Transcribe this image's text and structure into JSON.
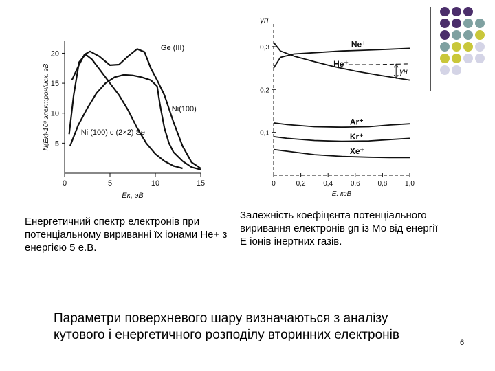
{
  "colors": {
    "purple": "#4b2e6b",
    "teal": "#7fa1a1",
    "olive": "#c9c73a",
    "lavender": "#d4d4e6",
    "ink": "#111111"
  },
  "decor": {
    "dot_rows": [
      [
        "purple",
        "purple",
        "purple"
      ],
      [
        "purple",
        "purple",
        "teal",
        "teal"
      ],
      [
        "purple",
        "teal",
        "teal",
        "olive"
      ],
      [
        "teal",
        "olive",
        "olive",
        "lavender"
      ],
      [
        "olive",
        "olive",
        "lavender",
        "lavender"
      ],
      [
        "lavender",
        "lavender"
      ]
    ]
  },
  "chart_data": [
    {
      "type": "line",
      "ylabel": "N(Eк)·10³ электрон/иск. эВ",
      "xlabel": "Eк, эВ",
      "xlim": [
        0,
        15
      ],
      "ylim": [
        0,
        22
      ],
      "xticks": [
        "0",
        "5",
        "10",
        "15"
      ],
      "yticks": [
        "5",
        "10",
        "15",
        "20"
      ],
      "series": [
        {
          "name": "Ge (III)",
          "label_x": 10.6,
          "label_y": 20.5,
          "points": [
            [
              0.8,
              15.5
            ],
            [
              1.5,
              17.8
            ],
            [
              2.2,
              19.8
            ],
            [
              2.8,
              20.3
            ],
            [
              3.8,
              19.5
            ],
            [
              5,
              18
            ],
            [
              6,
              18.1
            ],
            [
              7,
              19.5
            ],
            [
              8,
              20.7
            ],
            [
              8.8,
              20.2
            ],
            [
              9.5,
              17.5
            ],
            [
              10.2,
              15.5
            ],
            [
              11,
              13
            ],
            [
              12,
              8.5
            ],
            [
              13,
              4.5
            ],
            [
              14,
              1.8
            ],
            [
              15,
              0.8
            ]
          ]
        },
        {
          "name": "Ni(100)",
          "label_x": 11.8,
          "label_y": 10.3,
          "points": [
            [
              0.5,
              6.5
            ],
            [
              1,
              13
            ],
            [
              1.6,
              18.5
            ],
            [
              2.3,
              19.8
            ],
            [
              3,
              19
            ],
            [
              4,
              17
            ],
            [
              5,
              15
            ],
            [
              6,
              13
            ],
            [
              7,
              10.5
            ],
            [
              8,
              7.5
            ],
            [
              9,
              5
            ],
            [
              10,
              3.2
            ],
            [
              11,
              2
            ],
            [
              12,
              1.2
            ],
            [
              13,
              0.8
            ]
          ]
        },
        {
          "name": "Ni (100) c (2×2) Se",
          "label_x": 1.8,
          "label_y": 6.4,
          "points": [
            [
              0.6,
              4.5
            ],
            [
              1.5,
              8
            ],
            [
              2.5,
              10.8
            ],
            [
              3.5,
              13.3
            ],
            [
              4.5,
              15
            ],
            [
              5.5,
              16
            ],
            [
              6.5,
              16.4
            ],
            [
              7.5,
              16.3
            ],
            [
              8.5,
              16
            ],
            [
              9.5,
              15.5
            ],
            [
              10.2,
              14.5
            ],
            [
              10.5,
              11.5
            ],
            [
              11,
              7.5
            ],
            [
              11.5,
              5
            ],
            [
              12,
              3.5
            ],
            [
              13,
              2
            ],
            [
              14,
              1
            ],
            [
              15,
              0.6
            ]
          ]
        }
      ]
    },
    {
      "type": "line",
      "ylabel": "γп",
      "xlabel": "E, кэВ",
      "xlim": [
        0,
        1
      ],
      "ylim": [
        0,
        0.34
      ],
      "xticks": [
        "0",
        "0,2",
        "0,4",
        "0,6",
        "0,8",
        "1,0"
      ],
      "yticks": [
        "0,1",
        "0,2",
        "0,3"
      ],
      "series": [
        {
          "name": "Ne⁺",
          "label_x": 0.57,
          "label_y": 0.299,
          "points": [
            [
              0,
              0.25
            ],
            [
              0.05,
              0.275
            ],
            [
              0.15,
              0.283
            ],
            [
              0.3,
              0.286
            ],
            [
              0.5,
              0.29
            ],
            [
              0.7,
              0.292
            ],
            [
              0.85,
              0.294
            ],
            [
              1,
              0.296
            ]
          ]
        },
        {
          "name": "He⁺",
          "label_x": 0.44,
          "label_y": 0.253,
          "points": [
            [
              0,
              0.31
            ],
            [
              0.05,
              0.29
            ],
            [
              0.15,
              0.278
            ],
            [
              0.3,
              0.265
            ],
            [
              0.45,
              0.253
            ],
            [
              0.6,
              0.243
            ],
            [
              0.8,
              0.232
            ],
            [
              1,
              0.222
            ]
          ]
        },
        {
          "name": "He⁺ (dashed)",
          "dashed": true,
          "points": [
            [
              0.55,
              0.258
            ],
            [
              0.7,
              0.258
            ],
            [
              0.85,
              0.259
            ],
            [
              1,
              0.26
            ]
          ]
        },
        {
          "name": "Ar⁺",
          "label_x": 0.56,
          "label_y": 0.118,
          "points": [
            [
              0,
              0.122
            ],
            [
              0.1,
              0.118
            ],
            [
              0.3,
              0.113
            ],
            [
              0.5,
              0.112
            ],
            [
              0.7,
              0.113
            ],
            [
              0.85,
              0.117
            ],
            [
              1,
              0.12
            ]
          ]
        },
        {
          "name": "Kr⁺",
          "label_x": 0.56,
          "label_y": 0.083,
          "points": [
            [
              0,
              0.09
            ],
            [
              0.1,
              0.086
            ],
            [
              0.3,
              0.081
            ],
            [
              0.5,
              0.079
            ],
            [
              0.7,
              0.08
            ],
            [
              0.85,
              0.083
            ],
            [
              1,
              0.086
            ]
          ]
        },
        {
          "name": "Xe⁺",
          "label_x": 0.56,
          "label_y": 0.05,
          "points": [
            [
              0,
              0.06
            ],
            [
              0.1,
              0.056
            ],
            [
              0.3,
              0.048
            ],
            [
              0.5,
              0.044
            ],
            [
              0.7,
              0.042
            ],
            [
              0.85,
              0.041
            ],
            [
              1,
              0.041
            ]
          ]
        }
      ],
      "annotation": "γн"
    }
  ],
  "captions": {
    "left": "Енергетичний спектр електронів при потенціальному вириванні їх іонами Не+ з енергією 5 е.В.",
    "right": "Залежність коефіцєнта потенціального виривання електронів gп із Мо від енергії Е іонів інертних газів."
  },
  "bottom_text": "Параметри поверхневого шару визначаються з аналізу кутового і енергетичного розподілу вторинних електронів",
  "page_number": "6"
}
